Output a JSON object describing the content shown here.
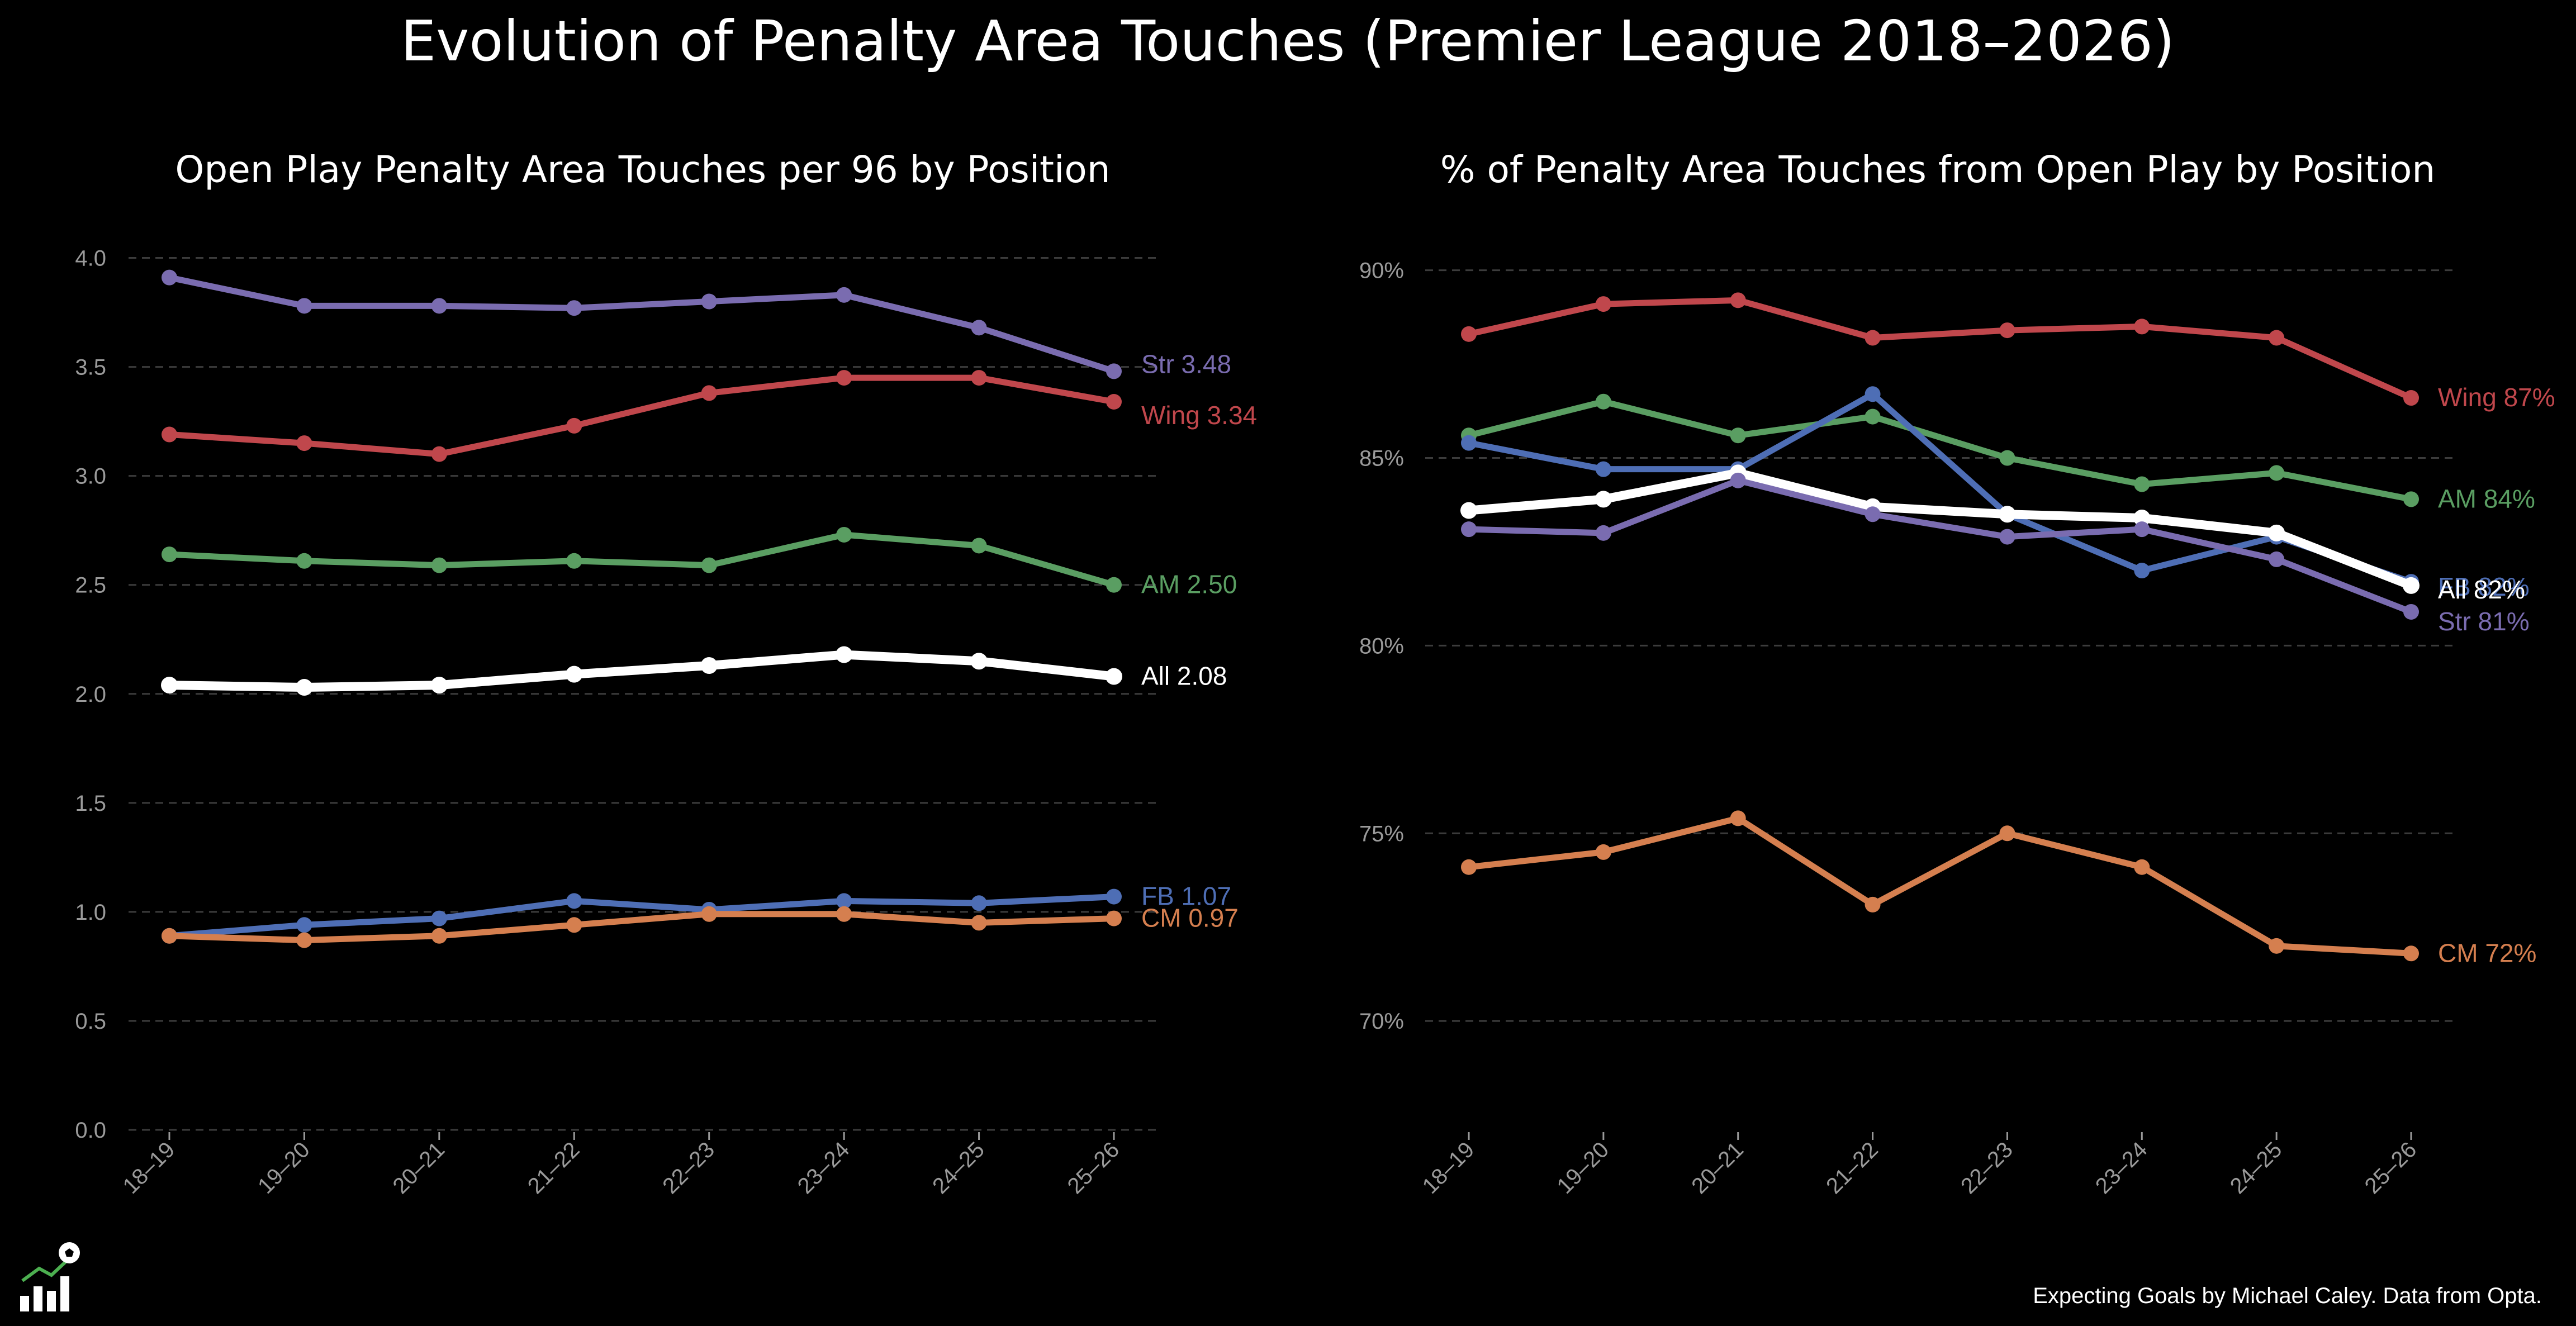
{
  "title": "Evolution of Penalty Area Touches (Premier League 2018–2026)",
  "footer": "Expecting Goals by Michael Caley. Data from Opta.",
  "logo_icon": "bar-chart-with-football-icon",
  "colors": {
    "background": "#000000",
    "Str": "#7a6cb0",
    "Wing": "#c0474c",
    "AM": "#5a9e62",
    "All": "#ffffff",
    "FB": "#4e6eb5",
    "CM": "#d57f4f",
    "grid": "#3c3c3c",
    "tick": "#9a9a9a"
  },
  "chart_data": [
    {
      "type": "line",
      "title": "Open Play Penalty Area Touches per 96 by Position",
      "categories": [
        "18–19",
        "19–20",
        "20–21",
        "21–22",
        "22–23",
        "23–24",
        "24–25",
        "25–26"
      ],
      "ylim": [
        0,
        4.15
      ],
      "yticks": [
        0.0,
        0.5,
        1.0,
        1.5,
        2.0,
        2.5,
        3.0,
        3.5,
        4.0
      ],
      "ytick_labels": [
        "0.0",
        "0.5",
        "1.0",
        "1.5",
        "2.0",
        "2.5",
        "3.0",
        "3.5",
        "4.0"
      ],
      "grid": true,
      "legend": "end-of-line labels",
      "series": [
        {
          "name": "Str",
          "end_label": "Str 3.48",
          "values": [
            3.91,
            3.78,
            3.78,
            3.77,
            3.8,
            3.83,
            3.68,
            3.48
          ]
        },
        {
          "name": "Wing",
          "end_label": "Wing 3.34",
          "values": [
            3.19,
            3.15,
            3.1,
            3.23,
            3.38,
            3.45,
            3.45,
            3.34
          ]
        },
        {
          "name": "AM",
          "end_label": "AM 2.50",
          "values": [
            2.64,
            2.61,
            2.59,
            2.61,
            2.59,
            2.73,
            2.68,
            2.5
          ]
        },
        {
          "name": "All",
          "end_label": "All 2.08",
          "values": [
            2.04,
            2.03,
            2.04,
            2.09,
            2.13,
            2.18,
            2.15,
            2.08
          ]
        },
        {
          "name": "FB",
          "end_label": "FB 1.07",
          "values": [
            0.89,
            0.94,
            0.97,
            1.05,
            1.01,
            1.05,
            1.04,
            1.07
          ]
        },
        {
          "name": "CM",
          "end_label": "CM 0.97",
          "values": [
            0.89,
            0.87,
            0.89,
            0.94,
            0.99,
            0.99,
            0.95,
            0.97
          ]
        }
      ]
    },
    {
      "type": "line",
      "title": "% of Penalty Area Touches from Open Play by Position",
      "categories": [
        "18–19",
        "19–20",
        "20–21",
        "21–22",
        "22–23",
        "23–24",
        "24–25",
        "25–26"
      ],
      "ylim": [
        67.1,
        91.2
      ],
      "yticks": [
        70,
        75,
        80,
        85,
        90
      ],
      "ytick_labels": [
        "70%",
        "75%",
        "80%",
        "85%",
        "90%"
      ],
      "grid": true,
      "legend": "end-of-line labels",
      "series": [
        {
          "name": "Wing",
          "end_label": "Wing 87%",
          "values": [
            88.3,
            89.1,
            89.2,
            88.2,
            88.4,
            88.5,
            88.2,
            86.6
          ]
        },
        {
          "name": "AM",
          "end_label": "AM 84%",
          "values": [
            85.6,
            86.5,
            85.6,
            86.1,
            85.0,
            84.3,
            84.6,
            83.9
          ]
        },
        {
          "name": "FB",
          "end_label": "FB 82%",
          "values": [
            85.4,
            84.7,
            84.7,
            86.7,
            83.5,
            82.0,
            82.9,
            81.7
          ]
        },
        {
          "name": "All",
          "end_label": "All 82%",
          "values": [
            83.6,
            83.9,
            84.6,
            83.7,
            83.5,
            83.4,
            83.0,
            81.6
          ]
        },
        {
          "name": "Str",
          "end_label": "Str 81%",
          "values": [
            83.1,
            83.0,
            84.4,
            83.5,
            82.9,
            83.1,
            82.3,
            80.9
          ]
        },
        {
          "name": "CM",
          "end_label": "CM 72%",
          "values": [
            74.1,
            74.5,
            75.4,
            73.1,
            75.0,
            74.1,
            72.0,
            71.8
          ]
        }
      ]
    }
  ]
}
